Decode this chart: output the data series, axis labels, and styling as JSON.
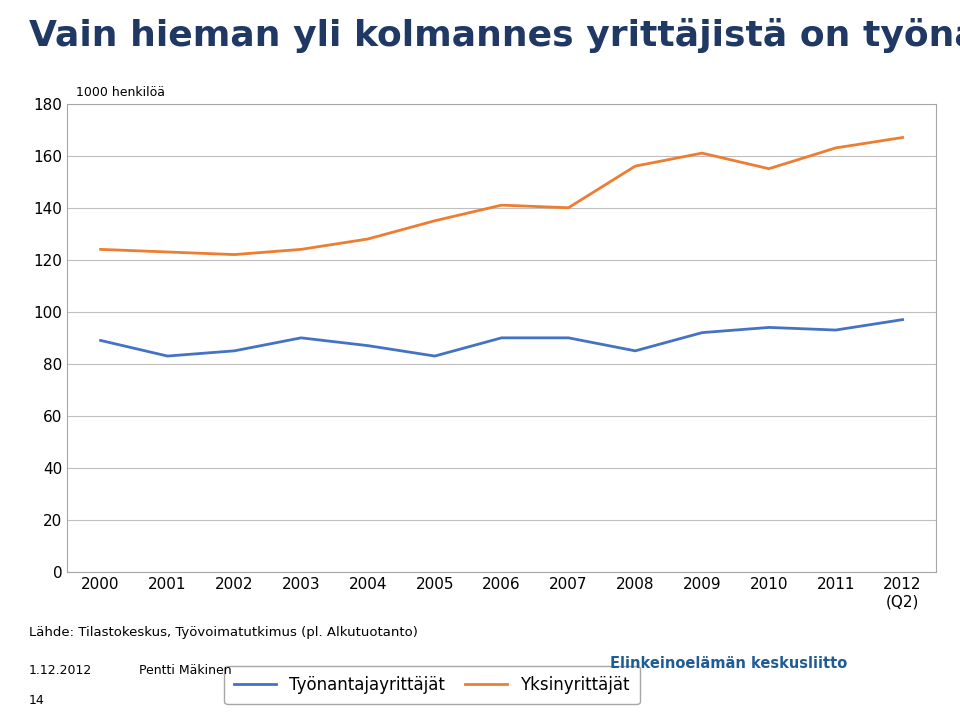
{
  "title": "Vain hieman yli kolmannes yrittäjistä on työnantajia",
  "ylabel": "1000 henkilöä",
  "years": [
    2000,
    2001,
    2002,
    2003,
    2004,
    2005,
    2006,
    2007,
    2008,
    2009,
    2010,
    2011,
    2012
  ],
  "tyonantaja": [
    89,
    83,
    85,
    90,
    87,
    83,
    90,
    90,
    85,
    92,
    94,
    93,
    97
  ],
  "yksin": [
    124,
    123,
    122,
    124,
    128,
    135,
    141,
    140,
    156,
    161,
    155,
    163,
    167
  ],
  "tyonantaja_color": "#4472C4",
  "yksin_color": "#ED7D31",
  "ylim": [
    0,
    180
  ],
  "yticks": [
    0,
    20,
    40,
    60,
    80,
    100,
    120,
    140,
    160,
    180
  ],
  "grid_color": "#BFBFBF",
  "bg_color": "#FFFFFF",
  "legend_label_tyonantaja": "Työnantajayrittäjät",
  "legend_label_yksin": "Yksinyrittäjät",
  "source_text": "Lähde: Tilastokeskus, Työvoimatutkimus (pl. Alkutuotanto)",
  "date_text": "1.12.2012",
  "author_text": "Pentti Mäkinen",
  "page_text": "14",
  "ek_text": "Elinkeinoelämän keskusliitto",
  "title_fontsize": 26,
  "axis_fontsize": 11,
  "legend_fontsize": 12,
  "title_color": "#1F3864",
  "ek_color": "#1F5C96",
  "spine_color": "#A6A6A6"
}
